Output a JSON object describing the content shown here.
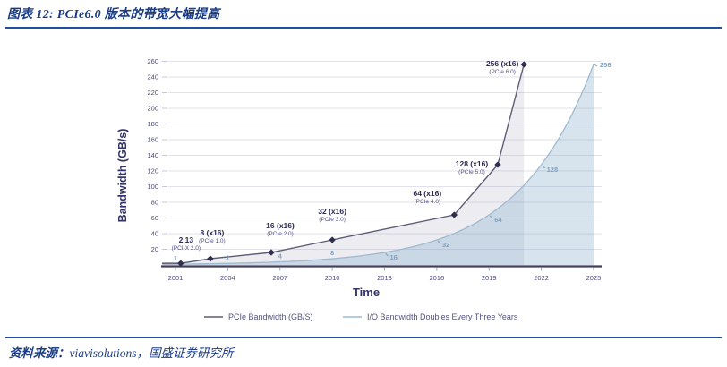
{
  "header": {
    "title": "图表 12: PCIe6.0 版本的带宽大幅提高"
  },
  "footer": {
    "source_label": "资料来源：",
    "source_value": "viavisolutions，国盛证券研究所"
  },
  "colors": {
    "accent_rule": "#2050A0",
    "title_text": "#1A3C86",
    "source_text": "#1A3C86",
    "dark_series": "#5D5D76",
    "dark_marker": "#2E2E4E",
    "dark_fill": "#9090A8",
    "light_series": "#9FBACF",
    "light_fill": "#7BA6C8",
    "grid": "#E2E2EA",
    "tick_text": "#4A4A80",
    "label_dark": "#2A2A52",
    "sublabel_dark": "#50508A",
    "label_light": "#7FA2C4",
    "legend_text": "#54547C",
    "axis_line": "#40405E",
    "axis_title": "#33336A"
  },
  "chart_data": {
    "type": "line",
    "title": "",
    "xlabel": "Time",
    "ylabel": "Bandwidth (GB/s)",
    "x_ticks": [
      2001,
      2004,
      2007,
      2010,
      2013,
      2016,
      2019,
      2022,
      2025
    ],
    "y_ticks": [
      20,
      40,
      60,
      80,
      100,
      120,
      140,
      160,
      180,
      200,
      220,
      240,
      260
    ],
    "xlim": [
      2000,
      2026
    ],
    "ylim": [
      0,
      270
    ],
    "grid": "horizontal",
    "legend_position": "bottom",
    "series": [
      {
        "name": "PCIe Bandwidth (GB/S)",
        "type": "line+markers+area",
        "points": [
          {
            "year": 2001.3,
            "value": 2.13,
            "label": "2.13",
            "sublabel": "(PCI-X 2.0)"
          },
          {
            "year": 2003,
            "value": 8,
            "label": "8 (x16)",
            "sublabel": "(PCIe 1.0)"
          },
          {
            "year": 2006.5,
            "value": 16,
            "label": "16 (x16)",
            "sublabel": "(PCIe 2.0)"
          },
          {
            "year": 2010,
            "value": 32,
            "label": "32 (x16)",
            "sublabel": "(PCIe 3.0)"
          },
          {
            "year": 2017,
            "value": 64,
            "label": "64 (x16)",
            "sublabel": "(PCIe 4.0)"
          },
          {
            "year": 2019.5,
            "value": 128,
            "label": "128 (x16)",
            "sublabel": "(PCIe 5.0)"
          },
          {
            "year": 2021,
            "value": 256,
            "label": "256 (x16)",
            "sublabel": "(PCIe 6.0)"
          }
        ]
      },
      {
        "name": "I/O Bandwidth Doubles Every Three Years",
        "type": "smooth-area",
        "points": [
          {
            "year": 2001,
            "value": 1,
            "label": "1"
          },
          {
            "year": 2004,
            "value": 2,
            "label": "2"
          },
          {
            "year": 2007,
            "value": 4,
            "label": "4"
          },
          {
            "year": 2010,
            "value": 8,
            "label": "8"
          },
          {
            "year": 2013,
            "value": 16,
            "label": "16"
          },
          {
            "year": 2016,
            "value": 32,
            "label": "32"
          },
          {
            "year": 2019,
            "value": 64,
            "label": "64"
          },
          {
            "year": 2022,
            "value": 128,
            "label": "128"
          },
          {
            "year": 2025,
            "value": 256,
            "label": "256"
          }
        ]
      }
    ]
  }
}
